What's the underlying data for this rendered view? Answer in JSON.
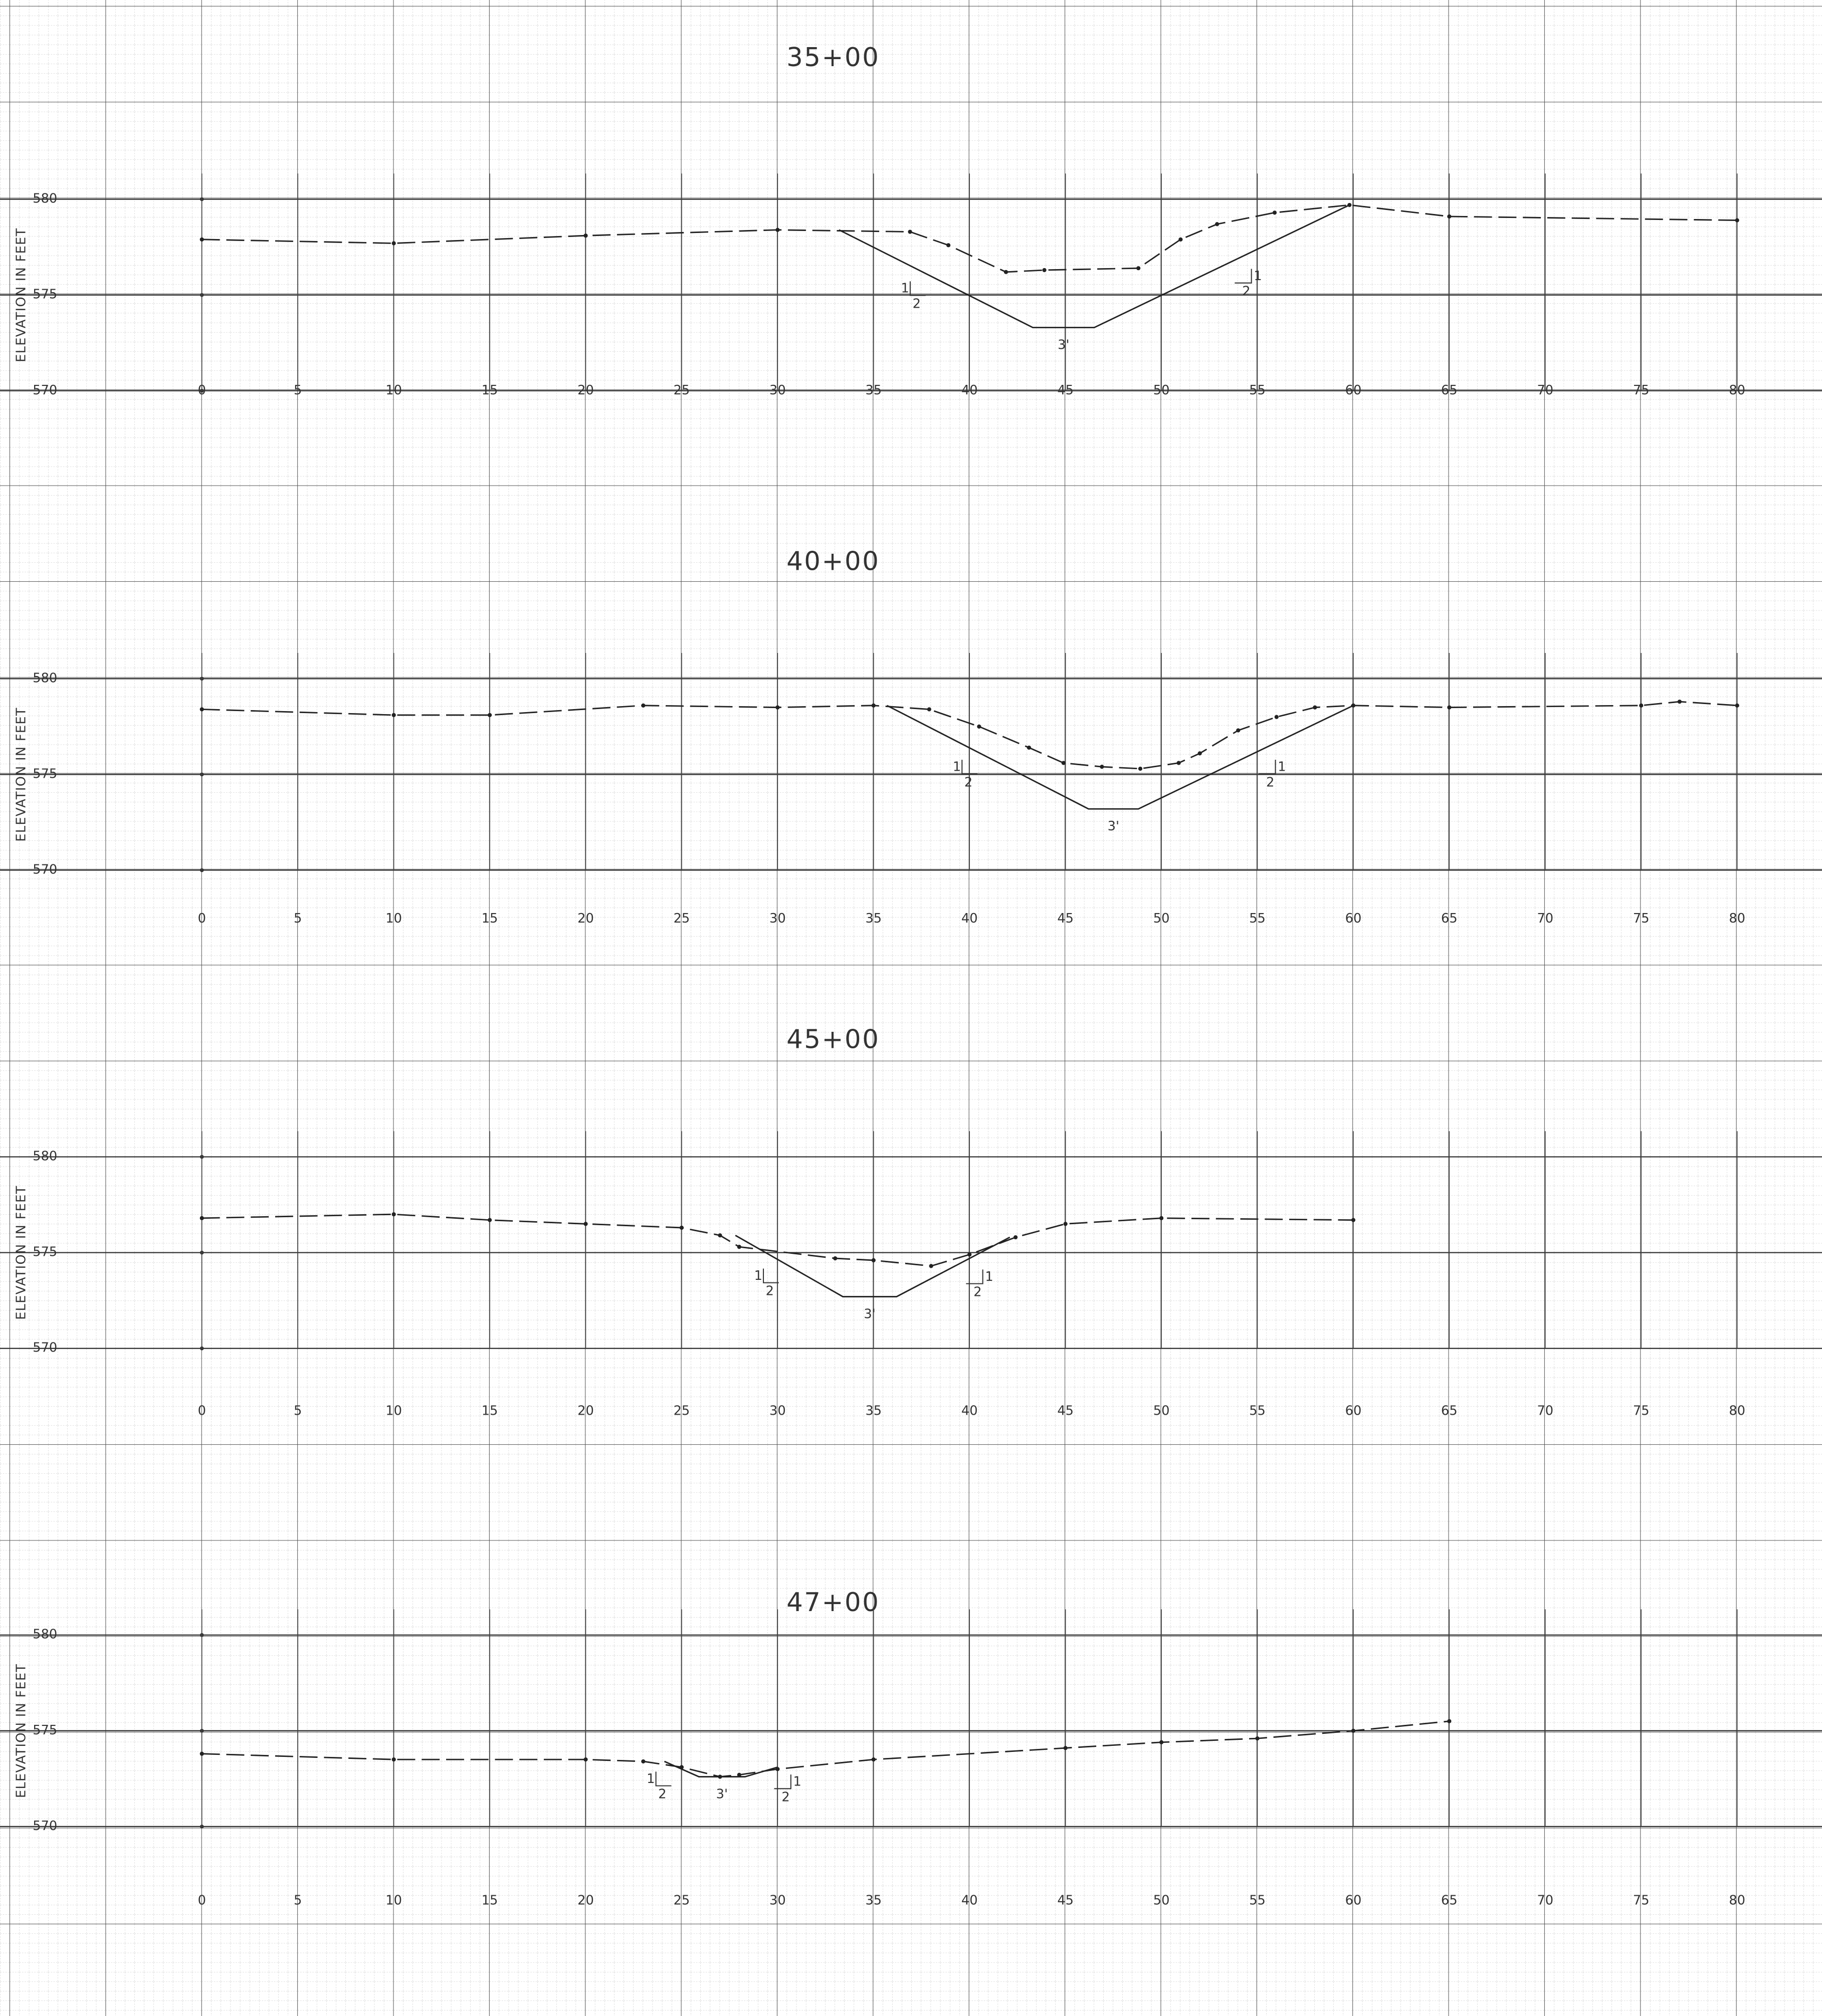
{
  "chart_data": [
    {
      "type": "line",
      "title": "35+00",
      "y_label": "ELEVATION IN FEET",
      "xlim": [
        0,
        80
      ],
      "xticks": [
        0,
        5,
        10,
        15,
        20,
        25,
        30,
        35,
        40,
        45,
        50,
        55,
        60,
        65,
        70,
        75,
        80
      ],
      "ylim": [
        570,
        580
      ],
      "yticks": [
        570,
        575,
        580
      ],
      "grid": true,
      "series": [
        {
          "color": "#222",
          "dashed": true,
          "markers": true,
          "x": [
            0,
            10,
            20,
            30,
            36.9,
            38.9,
            41.9,
            43.9,
            48.8,
            51,
            52.9,
            55.9,
            59.8,
            65,
            80
          ],
          "values": [
            577.9,
            577.7,
            578.1,
            578.4,
            578.3,
            577.6,
            576.2,
            576.3,
            576.4,
            577.9,
            578.7,
            579.3,
            579.7,
            579.1,
            578.9
          ]
        },
        {
          "color": "#222",
          "dashed": false,
          "markers": false,
          "x": [
            33.2,
            43.3,
            46.5,
            59.8
          ],
          "values": [
            578.4,
            573.3,
            573.3,
            579.7
          ]
        }
      ],
      "annotations": {
        "left_slope": [
          "1",
          "2"
        ],
        "right_slope": [
          "1",
          "2"
        ],
        "bottom_width": "3'"
      }
    },
    {
      "type": "line",
      "title": "40+00",
      "y_label": "ELEVATION IN FEET",
      "xlim": [
        0,
        80
      ],
      "xticks": [
        0,
        5,
        10,
        15,
        20,
        25,
        30,
        35,
        40,
        45,
        50,
        55,
        60,
        65,
        70,
        75,
        80
      ],
      "ylim": [
        570,
        580
      ],
      "yticks": [
        570,
        575,
        580
      ],
      "grid": true,
      "series": [
        {
          "color": "#222",
          "dashed": true,
          "markers": true,
          "x": [
            0,
            10,
            15,
            23,
            30,
            35,
            37.9,
            40.5,
            43.1,
            44.9,
            46.9,
            48.9,
            50.9,
            52,
            54,
            56,
            58,
            60,
            65,
            75,
            77,
            80
          ],
          "values": [
            578.4,
            578.1,
            578.1,
            578.6,
            578.5,
            578.6,
            578.4,
            577.5,
            576.4,
            575.6,
            575.4,
            575.3,
            575.6,
            576.1,
            577.3,
            578,
            578.5,
            578.6,
            578.5,
            578.6,
            578.8,
            578.6
          ]
        },
        {
          "color": "#222",
          "dashed": false,
          "markers": false,
          "x": [
            35.7,
            46.2,
            48.8,
            60
          ],
          "values": [
            578.6,
            573.2,
            573.2,
            578.6
          ]
        }
      ],
      "annotations": {
        "left_slope": [
          "1",
          "2"
        ],
        "right_slope": [
          "1",
          "2"
        ],
        "bottom_width": "3'"
      }
    },
    {
      "type": "line",
      "title": "45+00",
      "y_label": "ELEVATION IN FEET",
      "xlim": [
        0,
        80
      ],
      "xticks": [
        0,
        5,
        10,
        15,
        20,
        25,
        30,
        35,
        40,
        45,
        50,
        55,
        60,
        65,
        70,
        75,
        80
      ],
      "ylim": [
        570,
        580
      ],
      "yticks": [
        570,
        575,
        580
      ],
      "grid": true,
      "series": [
        {
          "color": "#222",
          "dashed": true,
          "markers": true,
          "x": [
            0,
            10,
            15,
            20,
            25,
            27,
            28,
            33,
            35,
            38,
            40,
            42.4,
            45,
            50,
            60
          ],
          "values": [
            576.8,
            577,
            576.7,
            576.5,
            576.3,
            575.9,
            575.3,
            574.7,
            574.6,
            574.3,
            574.9,
            575.8,
            576.5,
            576.8,
            576.7
          ]
        },
        {
          "color": "#222",
          "dashed": false,
          "markers": false,
          "x": [
            27.8,
            33.4,
            36.2,
            42.1
          ],
          "values": [
            575.9,
            572.7,
            572.7,
            575.8
          ]
        }
      ],
      "annotations": {
        "left_slope": [
          "1",
          "2"
        ],
        "right_slope": [
          "1",
          "2"
        ],
        "bottom_width": "3'"
      }
    },
    {
      "type": "line",
      "title": "47+00",
      "y_label": "ELEVATION IN FEET",
      "xlim": [
        0,
        80
      ],
      "xticks": [
        0,
        5,
        10,
        15,
        20,
        25,
        30,
        35,
        40,
        45,
        50,
        55,
        60,
        65,
        70,
        75,
        80
      ],
      "ylim": [
        570,
        580
      ],
      "yticks": [
        570,
        575,
        580
      ],
      "grid": true,
      "series": [
        {
          "color": "#222",
          "dashed": true,
          "markers": true,
          "x": [
            0,
            10,
            20,
            23,
            25,
            27,
            28,
            30,
            35,
            45,
            50,
            55,
            60,
            65
          ],
          "values": [
            573.8,
            573.5,
            573.5,
            573.4,
            573.1,
            572.6,
            572.7,
            573,
            573.5,
            574.1,
            574.4,
            574.6,
            575,
            575.5
          ]
        },
        {
          "color": "#222",
          "dashed": false,
          "markers": false,
          "x": [
            24.1,
            25.9,
            28.3,
            30
          ],
          "values": [
            573.4,
            572.6,
            572.6,
            573.1
          ]
        }
      ],
      "annotations": {
        "left_slope": [
          "1",
          "2"
        ],
        "right_slope": [
          "1",
          "2"
        ],
        "bottom_width": "3'"
      }
    }
  ]
}
